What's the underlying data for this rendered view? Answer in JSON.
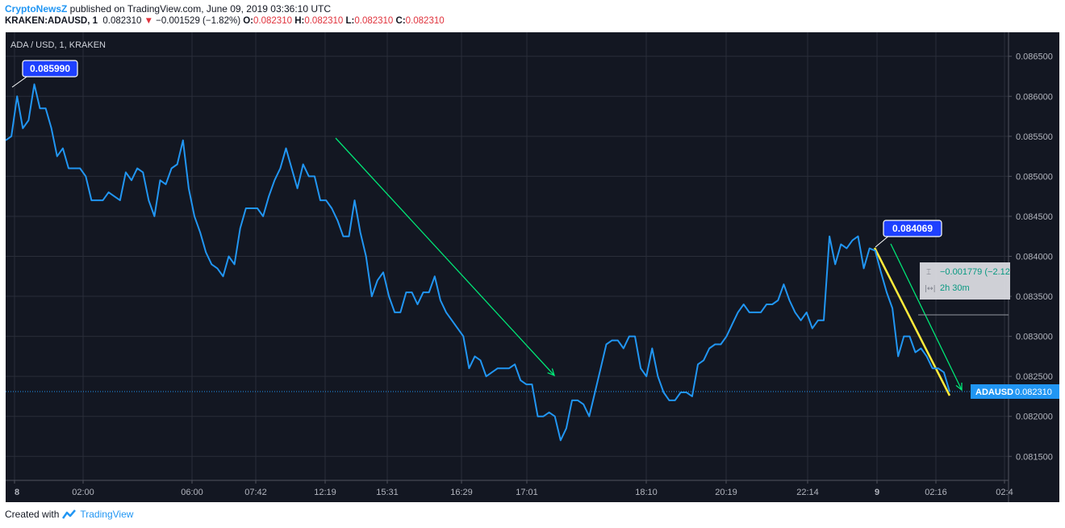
{
  "header": {
    "publisher": "CryptoNewsZ",
    "published_text": " published on TradingView.com, June 09, 2019 03:36:10 UTC",
    "symbol": "KRAKEN:ADAUSD, 1",
    "last": "0.082310",
    "change": "−0.001529 (−1.82%)",
    "o_label": "O:",
    "o": "0.082310",
    "h_label": "H:",
    "h": "0.082310",
    "l_label": "L:",
    "l": "0.082310",
    "c_label": "C:",
    "c": "0.082310"
  },
  "footer": {
    "created_with": "Created with",
    "brand": "TradingView"
  },
  "colors": {
    "background": "#131722",
    "grid": "#2a2e39",
    "line": "#2196f3",
    "arrow": "#00e676",
    "highlight": "#ffeb3b",
    "label_bg": "#1e40ff",
    "axis_text": "#b2b5be"
  },
  "chart_data": {
    "type": "line",
    "title": "ADA / USD, 1, KRAKEN",
    "ylim": [
      0.0812,
      0.0868
    ],
    "y_ticks": [
      "0.086500",
      "0.086000",
      "0.085500",
      "0.085000",
      "0.084500",
      "0.084000",
      "0.083500",
      "0.083000",
      "0.082500",
      "0.082000",
      "0.081500"
    ],
    "x_ticks": [
      "8",
      "02:00",
      "06:00",
      "07:42",
      "12:19",
      "15:31",
      "16:29",
      "17:01",
      "18:10",
      "20:19",
      "22:14",
      "9",
      "02:16",
      "02:4"
    ],
    "series": [
      {
        "values": [
          0.08545,
          0.0855,
          0.086,
          0.0856,
          0.0857,
          0.08615,
          0.08585,
          0.08585,
          0.0856,
          0.08525,
          0.08535,
          0.0851,
          0.0851,
          0.0851,
          0.085,
          0.0847,
          0.0847,
          0.0847,
          0.0848,
          0.08475,
          0.0847,
          0.08505,
          0.08495,
          0.0851,
          0.08505,
          0.0847,
          0.0845,
          0.08495,
          0.0849,
          0.0851,
          0.08515,
          0.08545,
          0.08485,
          0.0845,
          0.0843,
          0.08405,
          0.0839,
          0.08385,
          0.08375,
          0.084,
          0.0839,
          0.08435,
          0.0846,
          0.0846,
          0.0846,
          0.0845,
          0.08475,
          0.08495,
          0.0851,
          0.08535,
          0.0851,
          0.08485,
          0.08515,
          0.085,
          0.085,
          0.0847,
          0.0847,
          0.0846,
          0.08445,
          0.08425,
          0.08425,
          0.0847,
          0.0843,
          0.084,
          0.0835,
          0.0837,
          0.0838,
          0.0835,
          0.0833,
          0.0833,
          0.08355,
          0.08355,
          0.0834,
          0.08355,
          0.08355,
          0.08375,
          0.08345,
          0.0833,
          0.0832,
          0.0831,
          0.083,
          0.0826,
          0.08275,
          0.0827,
          0.0825,
          0.08255,
          0.0826,
          0.0826,
          0.0826,
          0.08265,
          0.08245,
          0.0824,
          0.0824,
          0.082,
          0.082,
          0.08205,
          0.082,
          0.0817,
          0.08185,
          0.0822,
          0.0822,
          0.08215,
          0.082,
          0.0823,
          0.0826,
          0.0829,
          0.08295,
          0.08295,
          0.08285,
          0.083,
          0.083,
          0.0826,
          0.0825,
          0.08285,
          0.0825,
          0.0823,
          0.0822,
          0.0822,
          0.0823,
          0.0823,
          0.08225,
          0.08265,
          0.0827,
          0.08285,
          0.0829,
          0.0829,
          0.083,
          0.08315,
          0.0833,
          0.0834,
          0.0833,
          0.0833,
          0.0833,
          0.0834,
          0.0834,
          0.08345,
          0.08365,
          0.08345,
          0.0833,
          0.0832,
          0.0833,
          0.0831,
          0.0832,
          0.0832,
          0.08425,
          0.0839,
          0.08415,
          0.0841,
          0.0842,
          0.08425,
          0.08385,
          0.0841,
          0.08407,
          0.0838,
          0.08355,
          0.08335,
          0.08275,
          0.083,
          0.083,
          0.0828,
          0.08285,
          0.08275,
          0.0826,
          0.0826,
          0.08255,
          0.08231
        ]
      }
    ],
    "annotations": {
      "high_label": "0.085990",
      "mid_label": "0.084069",
      "measure_change": "−0.001779 (−2.12",
      "measure_time": "2h 30m",
      "last_price_tag": "ADAUSD",
      "last_price": "0.082310"
    }
  }
}
